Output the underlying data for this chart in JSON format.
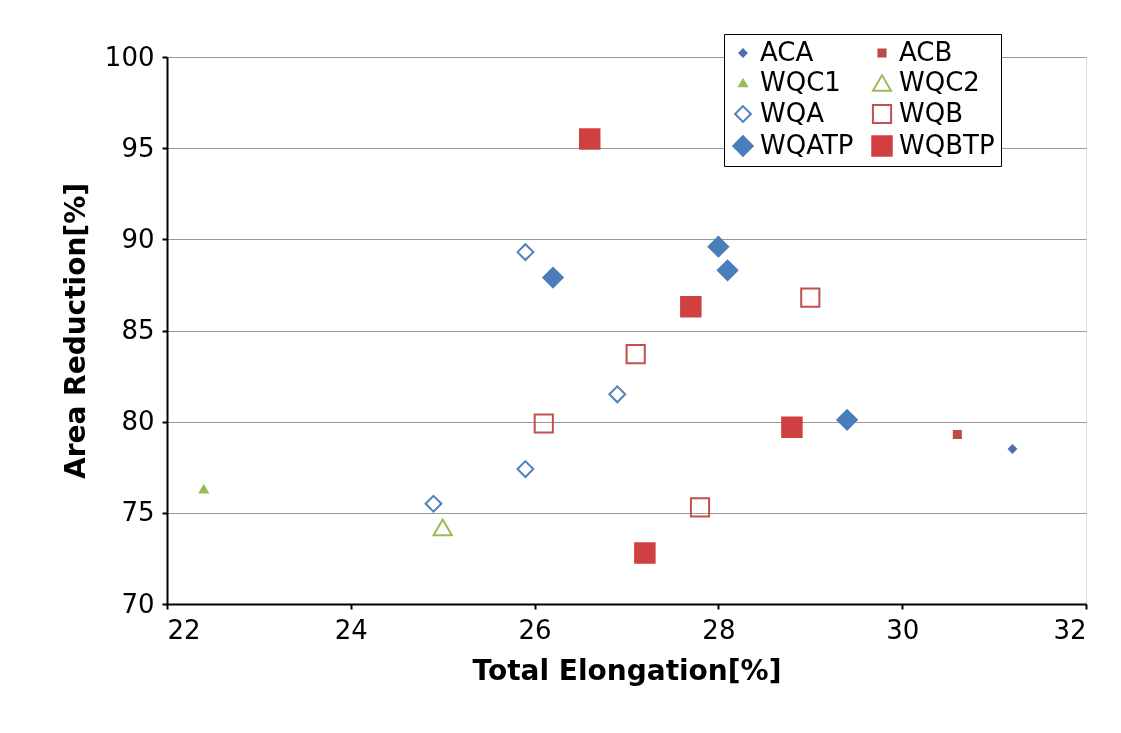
{
  "chart_data": {
    "type": "scatter",
    "xlabel": "Total Elongation[%]",
    "ylabel": "Area Reduction[%]",
    "xlim": [
      22,
      32
    ],
    "xticks": [
      22,
      24,
      26,
      28,
      30,
      32
    ],
    "ylim": [
      70,
      100
    ],
    "yticks": [
      70,
      75,
      80,
      85,
      90,
      95,
      100
    ],
    "grid": "y",
    "legend": "top right",
    "series": [
      {
        "name": "ACA",
        "color": "#4f6fae",
        "marker": "diamond",
        "x": [
          31.2
        ],
        "values": [
          78.5
        ]
      },
      {
        "name": "ACB",
        "color": "#be4b48",
        "marker": "square",
        "x": [
          30.6
        ],
        "values": [
          79.3
        ]
      },
      {
        "name": "WQC1",
        "color": "#9bbb59",
        "marker": "triangle",
        "x": [
          22.4
        ],
        "values": [
          76.3
        ]
      },
      {
        "name": "WQC2",
        "color": "#9bbb59",
        "marker": "triangle",
        "x": [
          25.0
        ],
        "values": [
          74.2
        ]
      },
      {
        "name": "WQA",
        "color": "#4f81bd",
        "marker": "diamond",
        "x": [
          24.9,
          25.9,
          26.9,
          25.9
        ],
        "values": [
          75.5,
          77.4,
          81.5,
          89.3
        ]
      },
      {
        "name": "WQB",
        "color": "#c0504d",
        "marker": "square",
        "x": [
          26.1,
          27.1,
          29.0,
          27.8
        ],
        "values": [
          79.9,
          83.7,
          86.8,
          75.3
        ]
      },
      {
        "name": "WQATP",
        "color": "#4a7ebb",
        "marker": "diamond",
        "x": [
          26.2,
          28.0,
          28.1,
          29.4
        ],
        "values": [
          87.9,
          89.6,
          88.3,
          80.1
        ]
      },
      {
        "name": "WQBTP",
        "color": "#d04040",
        "marker": "square",
        "x": [
          26.6,
          27.7,
          28.8,
          27.2
        ],
        "values": [
          95.5,
          86.3,
          79.7,
          72.8
        ]
      }
    ]
  }
}
